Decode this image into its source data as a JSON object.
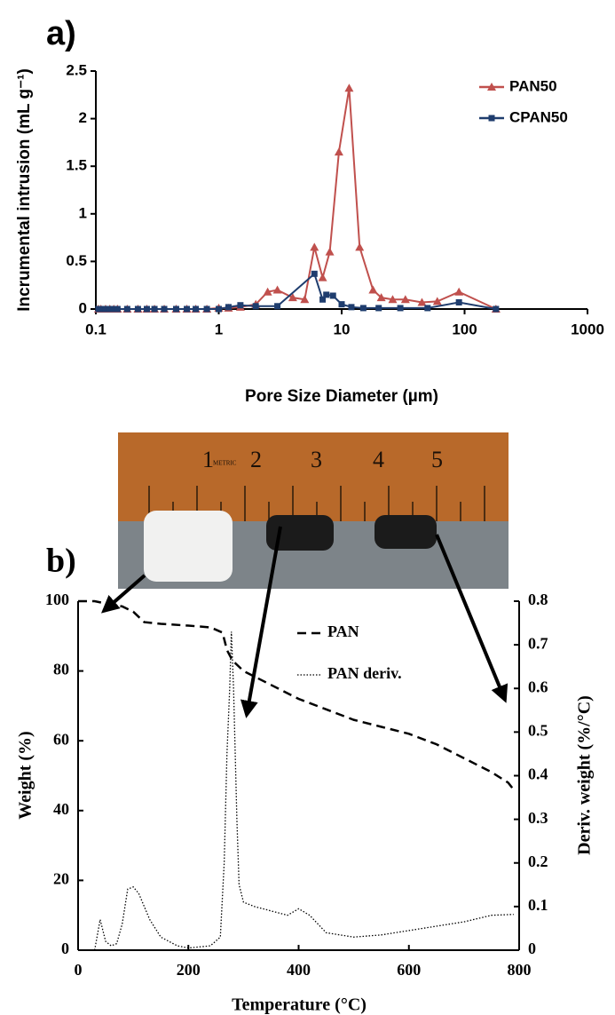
{
  "chart_data": [
    {
      "type": "line",
      "panel_label": "a)",
      "xlabel": "Pore Size Diameter (µm)",
      "ylabel": "Incrumental intrusion (mL g⁻¹)",
      "log_x": true,
      "xlim": [
        0.1,
        1000
      ],
      "xticks": [
        0.1,
        1,
        10,
        100,
        1000
      ],
      "ylim": [
        0,
        2.5
      ],
      "yticks": [
        0,
        0.5,
        1,
        1.5,
        2,
        2.5
      ],
      "legend": "upper right",
      "grid": false,
      "series": [
        {
          "name": "PAN50",
          "color": "#c0504d",
          "marker": "triangle",
          "line_style": "solid",
          "x": [
            0.105,
            0.11,
            0.12,
            0.13,
            0.14,
            0.15,
            0.18,
            0.22,
            0.26,
            0.3,
            0.36,
            0.45,
            0.55,
            0.65,
            0.8,
            1,
            1.2,
            1.5,
            2,
            2.5,
            3,
            4,
            5,
            6,
            7,
            8,
            9.5,
            11.5,
            14,
            18,
            21,
            26,
            33,
            45,
            60,
            90,
            180
          ],
          "values": [
            0,
            0,
            0,
            0,
            0,
            0,
            0,
            0,
            0,
            0,
            0,
            0,
            0,
            0,
            0,
            0.01,
            0.01,
            0.02,
            0.05,
            0.18,
            0.2,
            0.12,
            0.1,
            0.65,
            0.33,
            0.6,
            1.65,
            2.32,
            0.65,
            0.2,
            0.12,
            0.1,
            0.1,
            0.07,
            0.08,
            0.18,
            0
          ]
        },
        {
          "name": "CPAN50",
          "color": "#1f3d6e",
          "marker": "square",
          "line_style": "solid",
          "x": [
            0.105,
            0.11,
            0.12,
            0.13,
            0.14,
            0.15,
            0.18,
            0.22,
            0.26,
            0.3,
            0.36,
            0.45,
            0.55,
            0.65,
            0.8,
            1,
            1.2,
            1.5,
            2,
            3,
            6,
            7,
            7.5,
            8.5,
            10,
            12,
            15,
            20,
            30,
            50,
            90,
            180
          ],
          "values": [
            0,
            0,
            0,
            0,
            0,
            0,
            0,
            0,
            0,
            0,
            0,
            0,
            0,
            0,
            0,
            0,
            0.02,
            0.04,
            0.03,
            0.03,
            0.37,
            0.1,
            0.15,
            0.14,
            0.05,
            0.02,
            0.01,
            0.01,
            0.01,
            0.01,
            0.07,
            0
          ]
        }
      ]
    },
    {
      "type": "line",
      "panel_label": "b)",
      "xlabel": "Temperature (°C)",
      "ylabel": "Weight (%)",
      "y2label": "Deriv. weight (%/°C)",
      "log_x": false,
      "xlim": [
        0,
        800
      ],
      "xticks": [
        0,
        200,
        400,
        600,
        800
      ],
      "ylim": [
        0,
        100
      ],
      "yticks": [
        0,
        20,
        40,
        60,
        80,
        100
      ],
      "y2lim": [
        0,
        0.8
      ],
      "y2ticks": [
        0,
        0.1,
        0.2,
        0.3,
        0.4,
        0.5,
        0.6,
        0.7,
        0.8
      ],
      "legend": "upper center",
      "grid": false,
      "series": [
        {
          "name": "PAN",
          "color": "#000000",
          "marker": "none",
          "line_style": "dashed",
          "x": [
            0,
            30,
            60,
            80,
            100,
            120,
            150,
            200,
            240,
            262,
            270,
            280,
            300,
            350,
            400,
            450,
            500,
            550,
            600,
            650,
            700,
            750,
            780,
            790
          ],
          "values": [
            100,
            100,
            99,
            98.5,
            97,
            94,
            93.5,
            93,
            92.5,
            91,
            86,
            83,
            80,
            76,
            72,
            69,
            66,
            64,
            62,
            59,
            55,
            51,
            48,
            46
          ]
        },
        {
          "name": "PAN deriv.",
          "color": "#000000",
          "marker": "none",
          "line_style": "dotted",
          "axis": "y2",
          "x": [
            30,
            40,
            50,
            60,
            70,
            80,
            90,
            100,
            110,
            130,
            150,
            180,
            200,
            240,
            258,
            265,
            270,
            275,
            278,
            282,
            288,
            292,
            300,
            320,
            350,
            380,
            400,
            420,
            450,
            500,
            550,
            600,
            650,
            700,
            750,
            790
          ],
          "values": [
            0,
            0.07,
            0.02,
            0.01,
            0.015,
            0.06,
            0.14,
            0.145,
            0.13,
            0.07,
            0.03,
            0.01,
            0.005,
            0.01,
            0.03,
            0.2,
            0.45,
            0.6,
            0.73,
            0.6,
            0.3,
            0.15,
            0.11,
            0.1,
            0.09,
            0.08,
            0.095,
            0.08,
            0.04,
            0.03,
            0.035,
            0.045,
            0.055,
            0.065,
            0.08,
            0.082
          ]
        }
      ]
    }
  ],
  "photo": {
    "ruler_numbers": [
      "1",
      "2",
      "3",
      "4",
      "5"
    ],
    "ruler_brand": "METRIC"
  }
}
